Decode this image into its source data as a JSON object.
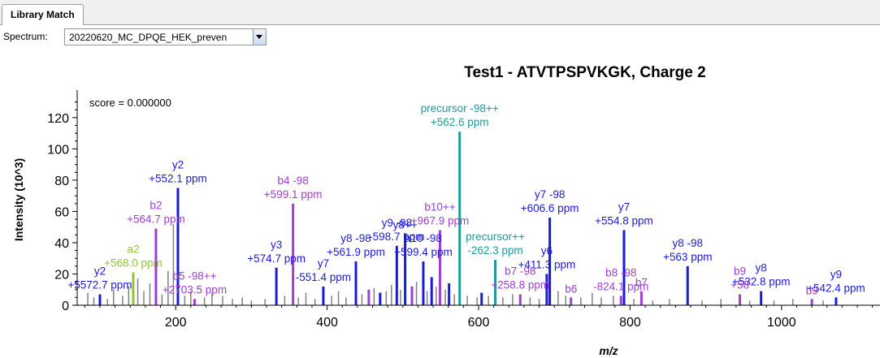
{
  "tab": {
    "label": "Library Match"
  },
  "spectrum": {
    "label": "Spectrum:",
    "value": "20220620_MC_DPQE_HEK_preven"
  },
  "colors": {
    "b_ion": "#9e3fcf",
    "y_ion": "#1a1adb",
    "precursor": "#1e9b9b",
    "a_ion": "#8fc730",
    "other": "#808080"
  },
  "chart_data": {
    "type": "bar",
    "title": "Test1 - ATVTPSPVKGK, Charge 2",
    "xlabel": "m/z",
    "ylabel": "Intensity (10^3)",
    "annotation": "score = 0.000000",
    "xlim": [
      70,
      1130
    ],
    "ylim": [
      0,
      135
    ],
    "xticks": [
      200,
      400,
      600,
      800,
      1000
    ],
    "yticks": [
      0,
      20,
      40,
      60,
      80,
      100,
      120
    ],
    "peaks": [
      {
        "mz": 203,
        "intensity": 75,
        "type": "y",
        "label": [
          "y2",
          "+552.1 ppm"
        ]
      },
      {
        "mz": 174,
        "intensity": 49,
        "type": "b",
        "label": [
          "b2",
          "+564.7 ppm"
        ]
      },
      {
        "mz": 144,
        "intensity": 21,
        "type": "a",
        "label": [
          "a2",
          "+568.0 ppm"
        ]
      },
      {
        "mz": 355,
        "intensity": 65,
        "type": "b",
        "label": [
          "b4 -98",
          "+599.1 ppm"
        ]
      },
      {
        "mz": 333,
        "intensity": 24,
        "type": "y",
        "label": [
          "y3",
          "+574.7 ppm"
        ]
      },
      {
        "mz": 575,
        "intensity": 111,
        "type": "precursor",
        "label": [
          "precursor -98++",
          "+562.6 ppm"
        ]
      },
      {
        "mz": 622,
        "intensity": 29,
        "type": "precursor",
        "label": [
          "precursor++",
          "-262.3 ppm"
        ]
      },
      {
        "mz": 549,
        "intensity": 48,
        "type": "b",
        "label": [
          "b10++",
          "+967.9 ppm"
        ]
      },
      {
        "mz": 694,
        "intensity": 56,
        "type": "y",
        "label": [
          "y7 -98",
          "+606.6 ppm"
        ]
      },
      {
        "mz": 792,
        "intensity": 48,
        "type": "y",
        "label": [
          "y7",
          "+554.8 ppm"
        ]
      },
      {
        "mz": 876,
        "intensity": 25,
        "type": "y",
        "label": [
          "y8 -98",
          "+563 ppm"
        ]
      },
      {
        "mz": 815,
        "intensity": 9,
        "type": "b",
        "label": [
          "b7",
          ""
        ]
      },
      {
        "mz": 690,
        "intensity": 20,
        "type": "y",
        "label": [
          "y6",
          "+411.3 ppm"
        ]
      },
      {
        "mz": 438,
        "intensity": 28,
        "type": "y",
        "label": [
          "y8 -98",
          "+561.9 ppm"
        ]
      },
      {
        "mz": 492,
        "intensity": 38,
        "type": "y",
        "label": [
          "y9 -98",
          "-598.7 ppm"
        ]
      },
      {
        "mz": 503,
        "intensity": 46,
        "type": "y",
        "label": [
          "y8++",
          ""
        ]
      },
      {
        "mz": 395,
        "intensity": 12,
        "type": "y",
        "label": [
          "y7",
          "-551.4 ppm"
        ]
      },
      {
        "mz": 527,
        "intensity": 28,
        "type": "y",
        "label": [
          "a10 -98",
          "+599.4 ppm"
        ]
      },
      {
        "mz": 973,
        "intensity": 9,
        "type": "y",
        "label": [
          "y8",
          "+532.8 ppm"
        ]
      },
      {
        "mz": 1072,
        "intensity": 5,
        "type": "y",
        "label": [
          "y9",
          "+542.4 ppm"
        ]
      },
      {
        "mz": 945,
        "intensity": 7,
        "type": "b",
        "label": [
          "b9",
          "+58"
        ]
      },
      {
        "mz": 1040,
        "intensity": 4,
        "type": "b",
        "label": [
          "b9",
          ""
        ]
      },
      {
        "mz": 100,
        "intensity": 7,
        "type": "y",
        "label": [
          "y2",
          "+5572.7 ppm"
        ]
      },
      {
        "mz": 225,
        "intensity": 4,
        "type": "b",
        "label": [
          "b5 -98++",
          "+2703.5 ppm"
        ]
      },
      {
        "mz": 655,
        "intensity": 7,
        "type": "b",
        "label": [
          "b7 -98",
          "+258.8 ppm"
        ]
      },
      {
        "mz": 788,
        "intensity": 6,
        "type": "b",
        "label": [
          "b8 -98",
          "-824.1 ppm"
        ]
      },
      {
        "mz": 722,
        "intensity": 5,
        "type": "b",
        "label": [
          "b6",
          ""
        ]
      },
      {
        "mz": 604,
        "intensity": 8,
        "type": "y",
        "label": [
          "",
          ""
        ]
      },
      {
        "mz": 455,
        "intensity": 10,
        "type": "b",
        "label": [
          "",
          ""
        ]
      },
      {
        "mz": 512,
        "intensity": 12,
        "type": "b",
        "label": [
          "",
          ""
        ]
      },
      {
        "mz": 538,
        "intensity": 18,
        "type": "y",
        "label": [
          "",
          ""
        ]
      },
      {
        "mz": 561,
        "intensity": 14,
        "type": "y",
        "label": [
          "",
          ""
        ]
      },
      {
        "mz": 470,
        "intensity": 8,
        "type": "y",
        "label": [
          "",
          ""
        ]
      }
    ],
    "noise_peaks": [
      {
        "mz": 84,
        "intensity": 8
      },
      {
        "mz": 92,
        "intensity": 5
      },
      {
        "mz": 110,
        "intensity": 4
      },
      {
        "mz": 118,
        "intensity": 10
      },
      {
        "mz": 130,
        "intensity": 6
      },
      {
        "mz": 138,
        "intensity": 12
      },
      {
        "mz": 150,
        "intensity": 17
      },
      {
        "mz": 158,
        "intensity": 9
      },
      {
        "mz": 166,
        "intensity": 14
      },
      {
        "mz": 182,
        "intensity": 7
      },
      {
        "mz": 190,
        "intensity": 22
      },
      {
        "mz": 197,
        "intensity": 52
      },
      {
        "mz": 212,
        "intensity": 6
      },
      {
        "mz": 220,
        "intensity": 9
      },
      {
        "mz": 238,
        "intensity": 5
      },
      {
        "mz": 248,
        "intensity": 8
      },
      {
        "mz": 262,
        "intensity": 6
      },
      {
        "mz": 275,
        "intensity": 4
      },
      {
        "mz": 288,
        "intensity": 5
      },
      {
        "mz": 300,
        "intensity": 3
      },
      {
        "mz": 318,
        "intensity": 4
      },
      {
        "mz": 344,
        "intensity": 6
      },
      {
        "mz": 362,
        "intensity": 5
      },
      {
        "mz": 372,
        "intensity": 8
      },
      {
        "mz": 384,
        "intensity": 4
      },
      {
        "mz": 406,
        "intensity": 6
      },
      {
        "mz": 415,
        "intensity": 9
      },
      {
        "mz": 425,
        "intensity": 5
      },
      {
        "mz": 446,
        "intensity": 7
      },
      {
        "mz": 462,
        "intensity": 11
      },
      {
        "mz": 478,
        "intensity": 9
      },
      {
        "mz": 485,
        "intensity": 13
      },
      {
        "mz": 497,
        "intensity": 10
      },
      {
        "mz": 518,
        "intensity": 15
      },
      {
        "mz": 532,
        "intensity": 9
      },
      {
        "mz": 544,
        "intensity": 12
      },
      {
        "mz": 556,
        "intensity": 10
      },
      {
        "mz": 568,
        "intensity": 7
      },
      {
        "mz": 585,
        "intensity": 6
      },
      {
        "mz": 598,
        "intensity": 5
      },
      {
        "mz": 613,
        "intensity": 6
      },
      {
        "mz": 632,
        "intensity": 5
      },
      {
        "mz": 645,
        "intensity": 7
      },
      {
        "mz": 668,
        "intensity": 5
      },
      {
        "mz": 680,
        "intensity": 4
      },
      {
        "mz": 705,
        "intensity": 9
      },
      {
        "mz": 715,
        "intensity": 6
      },
      {
        "mz": 735,
        "intensity": 5
      },
      {
        "mz": 750,
        "intensity": 8
      },
      {
        "mz": 762,
        "intensity": 5
      },
      {
        "mz": 778,
        "intensity": 6
      },
      {
        "mz": 805,
        "intensity": 4
      },
      {
        "mz": 830,
        "intensity": 3
      },
      {
        "mz": 852,
        "intensity": 4
      },
      {
        "mz": 895,
        "intensity": 3
      },
      {
        "mz": 920,
        "intensity": 4
      },
      {
        "mz": 958,
        "intensity": 3
      },
      {
        "mz": 990,
        "intensity": 3
      },
      {
        "mz": 1015,
        "intensity": 4
      },
      {
        "mz": 1055,
        "intensity": 3
      }
    ]
  }
}
